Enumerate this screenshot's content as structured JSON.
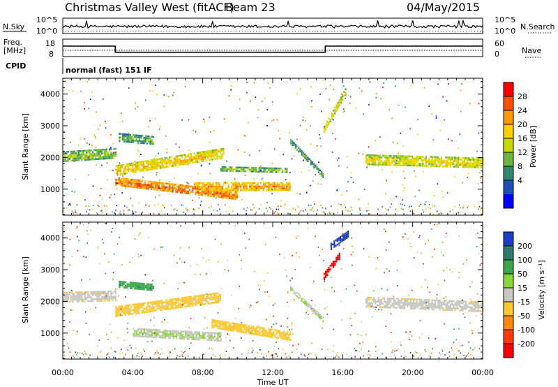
{
  "header": {
    "station": "Christmas Valley West (fitACF)",
    "beam": "Beam 23",
    "date": "04/May/2015"
  },
  "summary_panels": {
    "nsky_label": "N.Sky",
    "nsearch_label": "N.Search",
    "noise_ticks": [
      "10^5",
      "10^0"
    ],
    "freq_label_line1": "Freq.",
    "freq_label_line2": "[MHz]",
    "freq_ticks": [
      "18",
      "8"
    ],
    "nave_label": "Nave",
    "nave_ticks": [
      "60",
      "0"
    ],
    "cpid_label": "CPID",
    "cpid_text": "normal (fast) 151 IF",
    "line_style_solid": "solid",
    "line_style_dotted": "dotted"
  },
  "power_panel": {
    "ylabel": "Slant Range [km]",
    "cbar_label": "Power [dB]",
    "cbar_ticks": [
      "28",
      "24",
      "20",
      "16",
      "12",
      "8",
      "4"
    ],
    "cbar_colors": [
      "#ff0000",
      "#ff5000",
      "#ff9a00",
      "#ffd000",
      "#c8d800",
      "#68b840",
      "#2e8b70",
      "#1e50b8",
      "#0000ff"
    ]
  },
  "velocity_panel": {
    "ylabel": "Slant Range [km]",
    "cbar_label": "Velocity [m s⁻¹]",
    "cbar_ticks": [
      "200",
      "100",
      "50",
      "15",
      "-15",
      "-50",
      "-100",
      "-200"
    ],
    "cbar_colors": [
      "#1a3cc8",
      "#2e7a6e",
      "#3aa84a",
      "#88d83a",
      "#c8c8c0",
      "#ffc830",
      "#ff8a00",
      "#ff3a00",
      "#ff0000"
    ]
  },
  "xaxis": {
    "label": "Time UT",
    "ticks": [
      "00:00",
      "04:00",
      "08:00",
      "12:00",
      "16:00",
      "20:00",
      "00:00"
    ]
  },
  "chart_data": [
    {
      "type": "line",
      "name": "frequency",
      "x": [
        0,
        3,
        3,
        15,
        15,
        24
      ],
      "y": [
        14,
        14,
        10.5,
        10.5,
        14,
        14
      ],
      "xlim": [
        0,
        24
      ],
      "ylim": [
        8,
        18
      ]
    },
    {
      "type": "heatmap",
      "name": "power",
      "xlim": [
        0,
        24
      ],
      "ylim": [
        180,
        4500
      ],
      "x_unit": "hours UT",
      "y_unit": "km",
      "value_unit": "dB",
      "value_range": [
        0,
        30
      ],
      "bands": [
        {
          "x": [
            0,
            3
          ],
          "y_center": [
            2050,
            2150
          ],
          "y_width": 300,
          "value": 14
        },
        {
          "x": [
            3,
            9.2
          ],
          "y_center": [
            1600,
            2150
          ],
          "y_width": 320,
          "value": 20
        },
        {
          "x": [
            3,
            10
          ],
          "y_center": [
            1250,
            800
          ],
          "y_width": 280,
          "value": 26
        },
        {
          "x": [
            7.5,
            13
          ],
          "y_center": [
            1100,
            1100
          ],
          "y_width": 250,
          "value": 23
        },
        {
          "x": [
            9,
            12.8
          ],
          "y_center": [
            1650,
            1600
          ],
          "y_width": 150,
          "value": 14
        },
        {
          "x": [
            3.2,
            5.2
          ],
          "y_center": [
            2650,
            2550
          ],
          "y_width": 250,
          "value": 12
        },
        {
          "x": [
            13,
            14.9
          ],
          "y_center": [
            2500,
            1400
          ],
          "y_width": 170,
          "value": 11
        },
        {
          "x": [
            14.9,
            16.2
          ],
          "y_center": [
            2900,
            4150
          ],
          "y_width": 200,
          "value": 18
        },
        {
          "x": [
            17.3,
            24
          ],
          "y_center": [
            1950,
            1850
          ],
          "y_width": 300,
          "value": 18
        }
      ]
    },
    {
      "type": "heatmap",
      "name": "velocity",
      "xlim": [
        0,
        24
      ],
      "ylim": [
        180,
        4500
      ],
      "x_unit": "hours UT",
      "y_unit": "km",
      "value_unit": "m/s",
      "value_range": [
        -200,
        200
      ],
      "bands": [
        {
          "x": [
            0,
            3
          ],
          "y_center": [
            2150,
            2200
          ],
          "y_width": 300,
          "value": 0
        },
        {
          "x": [
            3,
            9
          ],
          "y_center": [
            1700,
            2150
          ],
          "y_width": 300,
          "value": -30
        },
        {
          "x": [
            4,
            9
          ],
          "y_center": [
            1050,
            900
          ],
          "y_width": 230,
          "value": 30
        },
        {
          "x": [
            8.5,
            13
          ],
          "y_center": [
            1300,
            900
          ],
          "y_width": 280,
          "value": -40
        },
        {
          "x": [
            3.2,
            5.2
          ],
          "y_center": [
            2550,
            2450
          ],
          "y_width": 200,
          "value": 120
        },
        {
          "x": [
            13,
            14.9
          ],
          "y_center": [
            2400,
            1400
          ],
          "y_width": 170,
          "value": 30
        },
        {
          "x": [
            14.9,
            15.8
          ],
          "y_center": [
            2800,
            3450
          ],
          "y_width": 200,
          "value": -200
        },
        {
          "x": [
            15.3,
            16.3
          ],
          "y_center": [
            3750,
            4150
          ],
          "y_width": 200,
          "value": 200
        },
        {
          "x": [
            17.3,
            24
          ],
          "y_center": [
            2000,
            1850
          ],
          "y_width": 300,
          "value": 0
        }
      ]
    }
  ]
}
